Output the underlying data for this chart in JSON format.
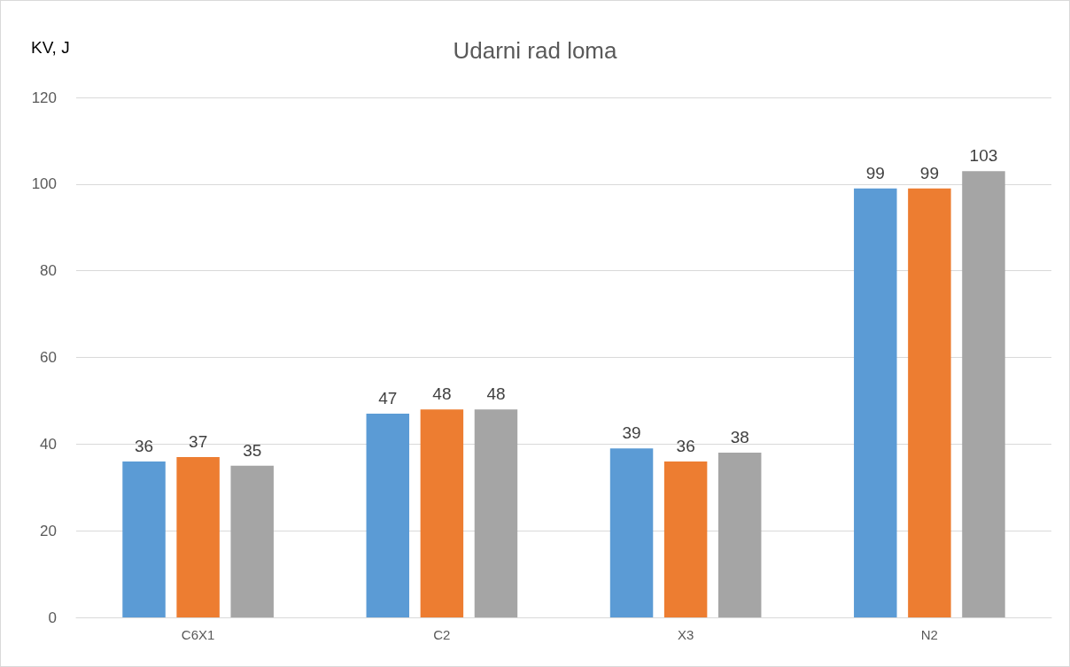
{
  "chart_data": {
    "type": "bar",
    "title": "Udarni rad loma",
    "ylabel": "KV, J",
    "categories": [
      "C6X1",
      "C2",
      "X3",
      "N2"
    ],
    "series": [
      {
        "color": "#5b9bd5",
        "values": [
          36,
          47,
          39,
          99
        ]
      },
      {
        "color": "#ed7d31",
        "values": [
          37,
          48,
          36,
          99
        ]
      },
      {
        "color": "#a5a5a5",
        "values": [
          35,
          48,
          38,
          103
        ]
      }
    ],
    "ylim": [
      0,
      120
    ],
    "yticks": [
      0,
      20,
      40,
      60,
      80,
      100,
      120
    ],
    "grid": "y",
    "data_labels": true
  }
}
